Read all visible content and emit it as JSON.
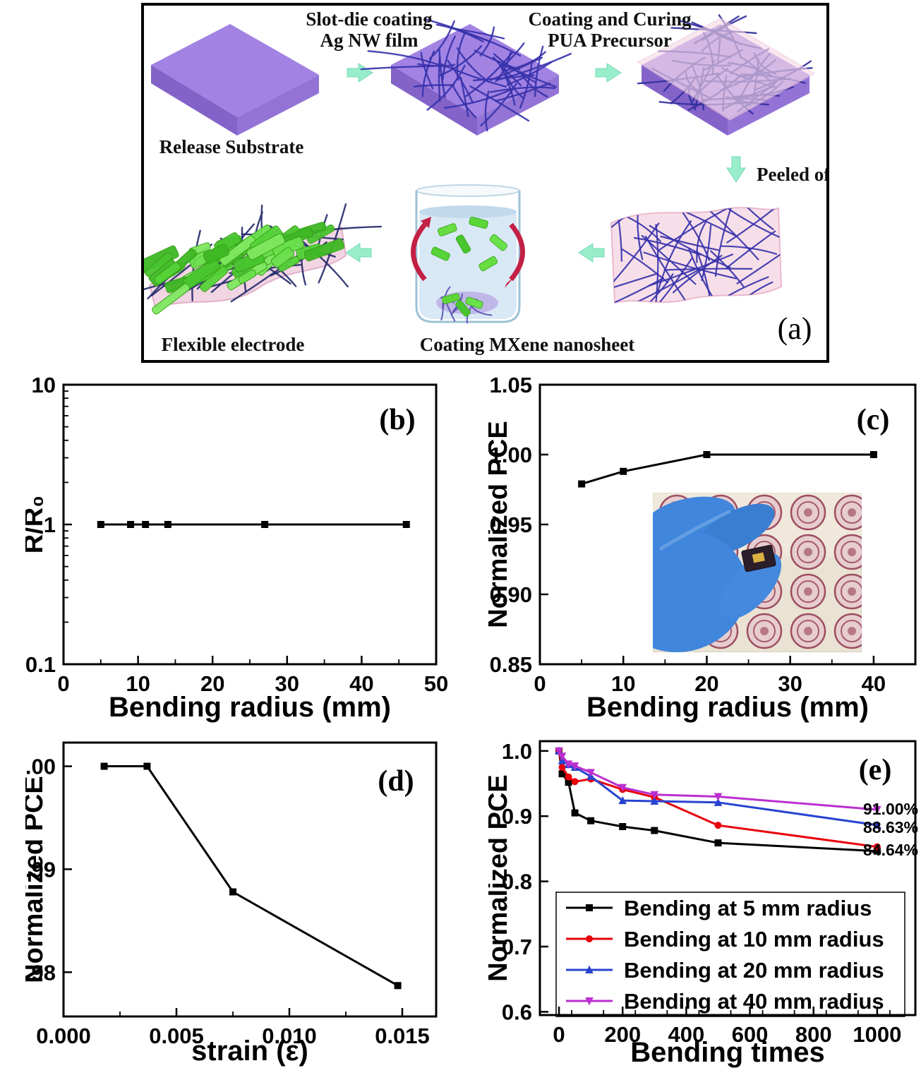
{
  "panel_a": {
    "panel_letter": "(a)",
    "step1_title_line1": "Slot-die coating",
    "step1_title_line2": "Ag NW film",
    "step2_title_line1": "Coating and Curing",
    "step2_title_line2": "PUA Precursor",
    "peeled_off_label": "Peeled off",
    "release_substrate_label": "Release Substrate",
    "flexible_electrode_label": "Flexible electrode",
    "coating_mxene_label": "Coating  MXene nanosheet",
    "colors": {
      "substrate_top": "#a283e3",
      "substrate_left": "#8463c9",
      "substrate_right": "#9374d6",
      "nanowire": "#3833ab",
      "nanowire_under_film": "#33309e",
      "process_arrow": "#98eecb",
      "pua_film_pink": "#f6d9e6",
      "mxene_green": "#55d337",
      "stir_arrow_red": "#c22045"
    }
  },
  "chart_data": [
    {
      "id": "b",
      "type": "line",
      "panel_label": "(b)",
      "xlabel": "Bending radius (mm)",
      "ylabel": "R/R₀",
      "xlim": [
        0,
        50
      ],
      "xticks": [
        0,
        10,
        20,
        30,
        40,
        50
      ],
      "xtick_labels": [
        "0",
        "10",
        "20",
        "30",
        "40",
        "50"
      ],
      "yscale": "log",
      "ylim": [
        0.1,
        10
      ],
      "yticks": [
        0.1,
        1,
        10
      ],
      "ytick_labels": [
        "0.1",
        "1",
        "10"
      ],
      "grid": false,
      "series": [
        {
          "name": "normalized resistance",
          "color": "#000000",
          "marker": "square",
          "x": [
            5,
            9,
            11,
            14,
            27,
            46
          ],
          "y": [
            1.0,
            1.0,
            1.0,
            1.0,
            1.0,
            1.0
          ]
        }
      ]
    },
    {
      "id": "c",
      "type": "line",
      "panel_label": "(c)",
      "xlabel": "Bending radius (mm)",
      "ylabel": "Normalized PCE",
      "xlim": [
        0,
        45
      ],
      "xticks": [
        0,
        10,
        20,
        30,
        40
      ],
      "xtick_labels": [
        "0",
        "10",
        "20",
        "30",
        "40"
      ],
      "ylim": [
        0.85,
        1.05
      ],
      "yticks": [
        0.85,
        0.9,
        0.95,
        1.0,
        1.05
      ],
      "ytick_labels": [
        "0.85",
        "0.90",
        "0.95",
        "1.00",
        "1.05"
      ],
      "grid": false,
      "series": [
        {
          "name": "normalized PCE vs bending radius",
          "color": "#000000",
          "marker": "square",
          "x": [
            5,
            10,
            20,
            40
          ],
          "y": [
            0.979,
            0.988,
            1.0,
            1.0
          ]
        }
      ],
      "inset_photo_alt": "blue gloved hand holding a small flexible solar cell above a sheet of circular patterned devices"
    },
    {
      "id": "d",
      "type": "line",
      "panel_label": "(d)",
      "xlabel": "strain (ε)",
      "ylabel": "Normalized PCE",
      "xlim": [
        0,
        0.0165
      ],
      "xticks": [
        0,
        0.005,
        0.01,
        0.015
      ],
      "xtick_labels": [
        "0.000",
        "0.005",
        "0.010",
        "0.015"
      ],
      "ylim": [
        0.9757,
        1.0023
      ],
      "yticks": [
        0.98,
        0.99,
        1.0
      ],
      "ytick_labels": [
        "0.98",
        "0.99",
        "1.00"
      ],
      "grid": false,
      "series": [
        {
          "name": "normalized PCE vs strain",
          "color": "#000000",
          "marker": "square",
          "x": [
            0.0018,
            0.0037,
            0.0075,
            0.0148
          ],
          "y": [
            1.0,
            1.0,
            0.9878,
            0.9787
          ]
        }
      ]
    },
    {
      "id": "e",
      "type": "line",
      "panel_label": "(e)",
      "xlabel": "Bending times",
      "ylabel": "Normalized PCE",
      "xlim": [
        -60,
        1120
      ],
      "xticks": [
        0,
        200,
        400,
        600,
        800,
        1000
      ],
      "xtick_labels": [
        "0",
        "200",
        "400",
        "600",
        "800",
        "1000"
      ],
      "ylim": [
        0.595,
        1.015
      ],
      "yticks": [
        0.6,
        0.7,
        0.8,
        0.9,
        1.0
      ],
      "ytick_labels": [
        "0.6",
        "0.7",
        "0.8",
        "0.9",
        "1.0"
      ],
      "grid": false,
      "legend_position": "lower-left",
      "series": [
        {
          "name": "Bending at 5 mm radius",
          "color": "#000000",
          "marker": "square",
          "x": [
            0,
            10,
            30,
            50,
            100,
            200,
            300,
            500,
            1000
          ],
          "y": [
            1.0,
            0.965,
            0.952,
            0.905,
            0.893,
            0.884,
            0.878,
            0.859,
            0.8464
          ]
        },
        {
          "name": "Bending at 10 mm radius",
          "color": "#e8000d",
          "marker": "circle",
          "x": [
            0,
            10,
            30,
            50,
            100,
            200,
            300,
            500,
            1000
          ],
          "y": [
            1.0,
            0.975,
            0.96,
            0.953,
            0.957,
            0.941,
            0.929,
            0.886,
            0.853
          ]
        },
        {
          "name": "Bending at 20 mm radius",
          "color": "#2743d0",
          "marker": "triangle-up",
          "x": [
            0,
            10,
            30,
            50,
            100,
            200,
            300,
            500,
            1000
          ],
          "y": [
            1.0,
            0.985,
            0.979,
            0.975,
            0.961,
            0.924,
            0.923,
            0.921,
            0.8863
          ]
        },
        {
          "name": "Bending at 40 mm radius",
          "color": "#bb2fd0",
          "marker": "triangle-down",
          "x": [
            0,
            10,
            30,
            50,
            100,
            200,
            300,
            500,
            1000
          ],
          "y": [
            1.0,
            0.992,
            0.98,
            0.977,
            0.967,
            0.944,
            0.933,
            0.93,
            0.91
          ]
        }
      ],
      "annotations": [
        {
          "text": "91.00%",
          "x": 1015,
          "y": 0.912,
          "color": "#000000"
        },
        {
          "text": "88.63%",
          "x": 1015,
          "y": 0.884,
          "color": "#000000"
        },
        {
          "text": "84.64%",
          "x": 1015,
          "y": 0.8495,
          "color": "#000000"
        }
      ]
    }
  ]
}
